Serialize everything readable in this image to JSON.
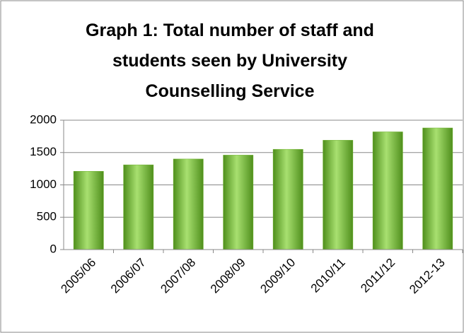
{
  "chart_data": {
    "type": "bar",
    "title": "Graph 1: Total number of staff and students seen by University Counselling Service",
    "categories": [
      "2005/06",
      "2006/07",
      "2007/08",
      "2008/09",
      "2009/10",
      "2010/11",
      "2011/12",
      "2012-13"
    ],
    "values": [
      1210,
      1310,
      1400,
      1460,
      1550,
      1690,
      1820,
      1880
    ],
    "color": "#6aae2a",
    "ylim": [
      0,
      2000
    ],
    "yticks": [
      0,
      500,
      1000,
      1500,
      2000
    ],
    "grid": true
  }
}
